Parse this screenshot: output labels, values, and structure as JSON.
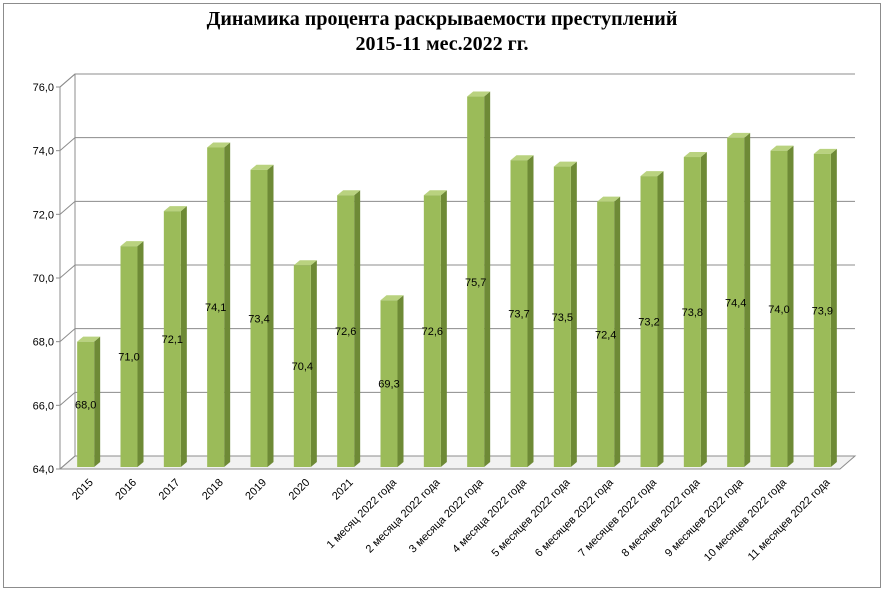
{
  "chart_data": {
    "type": "bar",
    "title_line1": "Динамика процента раскрываемости преступлений",
    "title_line2": "2015-11 мес.2022 гг.",
    "xlabel": "",
    "ylabel": "",
    "ylim": [
      64,
      76
    ],
    "y_ticks": [
      "64,0",
      "66,0",
      "68,0",
      "70,0",
      "72,0",
      "74,0",
      "76,0"
    ],
    "y_tick_values": [
      64,
      66,
      68,
      70,
      72,
      74,
      76
    ],
    "grid": true,
    "bar_color": "#9bbb59",
    "categories": [
      "2015",
      "2016",
      "2017",
      "2018",
      "2019",
      "2020",
      "2021",
      "1 месяц 2022 года",
      "2 месяца 2022 года",
      "3 месяца 2022 года",
      "4 месяца 2022 года",
      "5 месяцев 2022 года",
      "6 месяцев 2022 года",
      "7 месяцев 2022 года",
      "8 месяцев 2022 года",
      "9 месяцев 2022 года",
      "10 месяцев 2022 года",
      "11 месяцев 2022 года"
    ],
    "values": [
      68.0,
      71.0,
      72.1,
      74.1,
      73.4,
      70.4,
      72.6,
      69.3,
      72.6,
      75.7,
      73.7,
      73.5,
      72.4,
      73.2,
      73.8,
      74.4,
      74.0,
      73.9
    ],
    "value_labels": [
      "68,0",
      "71,0",
      "72,1",
      "74,1",
      "73,4",
      "70,4",
      "72,6",
      "69,3",
      "72,6",
      "75,7",
      "73,7",
      "73,5",
      "72,4",
      "73,2",
      "73,8",
      "74,4",
      "74,0",
      "73,9"
    ]
  }
}
